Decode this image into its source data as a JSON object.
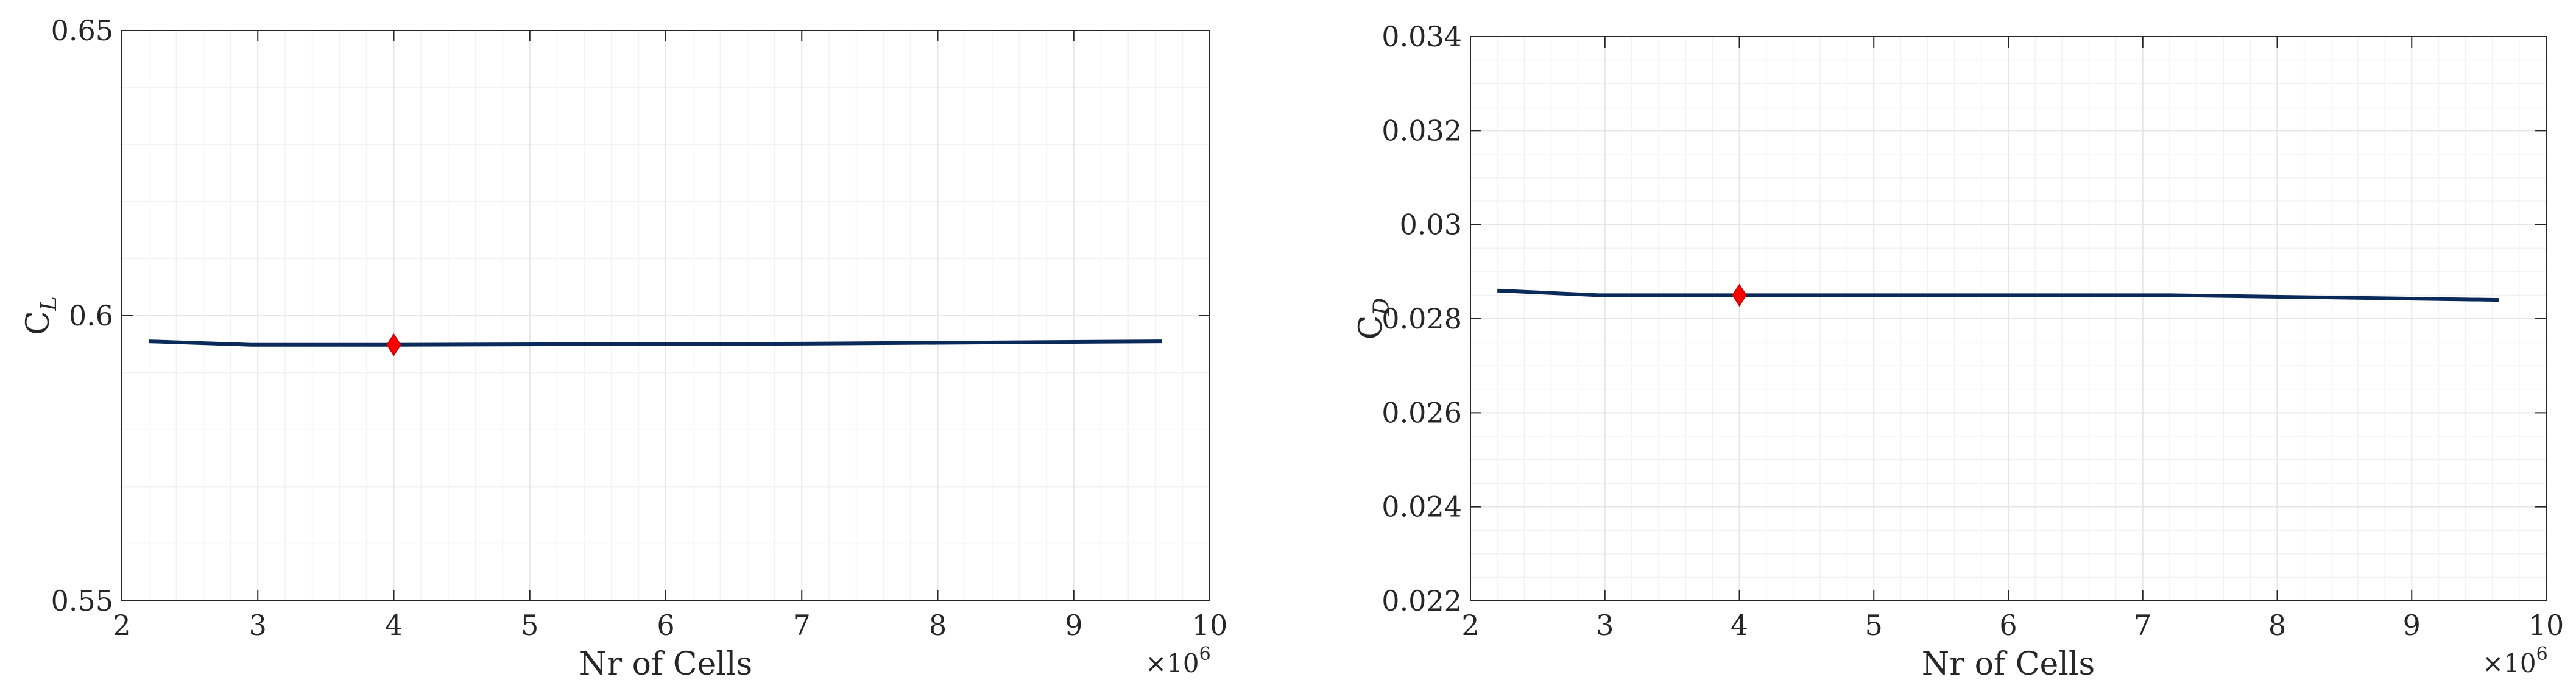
{
  "chart_data": [
    {
      "type": "line",
      "xlabel": "Nr of Cells",
      "ylabel_main": "C",
      "ylabel_sub": "L",
      "x_multiplier_base": "×10",
      "x_multiplier_exp": "6",
      "xlim": [
        2,
        10
      ],
      "ylim": [
        0.55,
        0.65
      ],
      "xticks": [
        2,
        3,
        4,
        5,
        6,
        7,
        8,
        9,
        10
      ],
      "xtick_labels": [
        "2",
        "3",
        "4",
        "5",
        "6",
        "7",
        "8",
        "9",
        "10"
      ],
      "yticks": [
        0.55,
        0.6,
        0.65
      ],
      "ytick_labels": [
        "0.55",
        "0.6",
        "0.65"
      ],
      "grid": true,
      "minor_grid": true,
      "series": [
        {
          "x": [
            2.2,
            2.95,
            4.0,
            7.0,
            9.65
          ],
          "y": [
            0.5955,
            0.5949,
            0.5949,
            0.5951,
            0.5955
          ],
          "color": "#0a2a5a"
        }
      ],
      "highlight": {
        "x": 4.0,
        "y": 0.5949,
        "color": "#ff0000",
        "shape": "diamond"
      }
    },
    {
      "type": "line",
      "xlabel": "Nr of Cells",
      "ylabel_main": "C",
      "ylabel_sub": "D",
      "x_multiplier_base": "×10",
      "x_multiplier_exp": "6",
      "xlim": [
        2,
        10
      ],
      "ylim": [
        0.022,
        0.034
      ],
      "xticks": [
        2,
        3,
        4,
        5,
        6,
        7,
        8,
        9,
        10
      ],
      "xtick_labels": [
        "2",
        "3",
        "4",
        "5",
        "6",
        "7",
        "8",
        "9",
        "10"
      ],
      "yticks": [
        0.022,
        0.024,
        0.026,
        0.028,
        0.03,
        0.032,
        0.034
      ],
      "ytick_labels": [
        "0.022",
        "0.024",
        "0.026",
        "0.028",
        "0.03",
        "0.032",
        "0.034"
      ],
      "grid": true,
      "minor_grid": true,
      "series": [
        {
          "x": [
            2.2,
            2.95,
            4.0,
            7.2,
            9.65
          ],
          "y": [
            0.0286,
            0.0285,
            0.0285,
            0.0285,
            0.0284
          ],
          "color": "#0a2a5a"
        }
      ],
      "highlight": {
        "x": 4.0,
        "y": 0.0285,
        "color": "#ff0000",
        "shape": "diamond"
      }
    }
  ]
}
